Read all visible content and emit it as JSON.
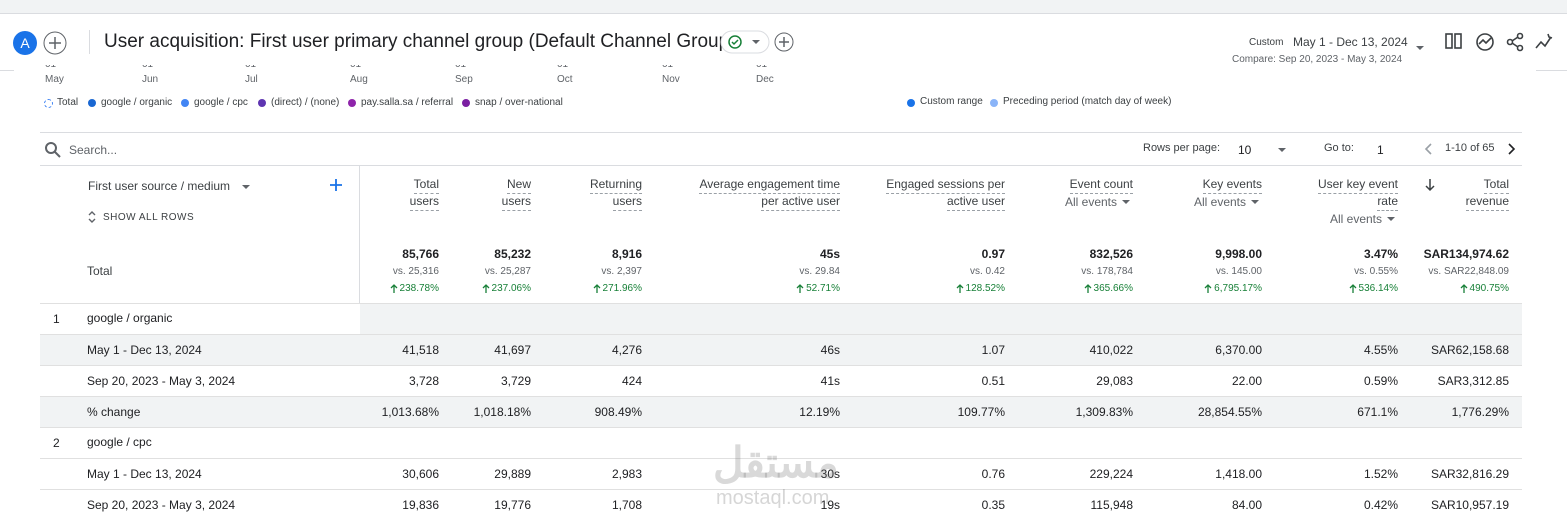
{
  "header": {
    "avatar": "A",
    "title": "User acquisition: First user primary channel group (Default Channel Group)",
    "date_label": "Custom",
    "date_range": "May 1 - Dec 13, 2024",
    "compare": "Compare: Sep 20, 2023 - May 3, 2024"
  },
  "chart_axis": {
    "day": "01",
    "months": [
      "May",
      "Jun",
      "Jul",
      "Aug",
      "Sep",
      "Oct",
      "Nov",
      "Dec"
    ]
  },
  "legend": {
    "series": [
      "Total",
      "google / organic",
      "google / cpc",
      "(direct) / (none)",
      "pay.salla.sa / referral",
      "snap / over-national"
    ],
    "periods": [
      "Custom range",
      "Preceding period (match day of week)"
    ]
  },
  "toolbar": {
    "search": "Search...",
    "rows_per_page_label": "Rows per page:",
    "rows_per_page": "10",
    "go_to_label": "Go to:",
    "go_to": "1",
    "pagination": "1-10 of 65"
  },
  "table": {
    "dimension": "First user source / medium",
    "show_all": "SHOW ALL ROWS",
    "columns": [
      {
        "lines": [
          "Total",
          "users"
        ]
      },
      {
        "lines": [
          "New",
          "users"
        ]
      },
      {
        "lines": [
          "Returning",
          "users"
        ]
      },
      {
        "lines": [
          "Average engagement time",
          "per active user"
        ]
      },
      {
        "lines": [
          "Engaged sessions per",
          "active user"
        ]
      },
      {
        "lines": [
          "Event count"
        ],
        "sub": "All events"
      },
      {
        "lines": [
          "Key events"
        ],
        "sub": "All events"
      },
      {
        "lines": [
          "User key event",
          "rate"
        ],
        "sub": "All events"
      },
      {
        "lines": [
          "Total",
          "revenue"
        ]
      }
    ],
    "total": {
      "label": "Total",
      "values": [
        "85,766",
        "85,232",
        "8,916",
        "45s",
        "0.97",
        "832,526",
        "9,998.00",
        "3.47%",
        "SAR134,974.62"
      ],
      "vs": [
        "vs. 25,316",
        "vs. 25,287",
        "vs. 2,397",
        "vs. 29.84",
        "vs. 0.42",
        "vs. 178,784",
        "vs. 145.00",
        "vs. 0.55%",
        "vs. SAR22,848.09"
      ],
      "change": [
        "238.78%",
        "237.06%",
        "271.96%",
        "52.71%",
        "128.52%",
        "365.66%",
        "6,795.17%",
        "536.14%",
        "490.75%"
      ]
    },
    "groups": [
      {
        "index": "1",
        "name": "google / organic",
        "rows": [
          {
            "label": "May 1 - Dec 13, 2024",
            "values": [
              "41,518",
              "41,697",
              "4,276",
              "46s",
              "1.07",
              "410,022",
              "6,370.00",
              "4.55%",
              "SAR62,158.68"
            ]
          },
          {
            "label": "Sep 20, 2023 - May 3, 2024",
            "values": [
              "3,728",
              "3,729",
              "424",
              "41s",
              "0.51",
              "29,083",
              "22.00",
              "0.59%",
              "SAR3,312.85"
            ]
          },
          {
            "label": "% change",
            "values": [
              "1,013.68%",
              "1,018.18%",
              "908.49%",
              "12.19%",
              "109.77%",
              "1,309.83%",
              "28,854.55%",
              "671.1%",
              "1,776.29%"
            ]
          }
        ]
      },
      {
        "index": "2",
        "name": "google / cpc",
        "rows": [
          {
            "label": "May 1 - Dec 13, 2024",
            "values": [
              "30,606",
              "29,889",
              "2,983",
              "30s",
              "0.76",
              "229,224",
              "1,418.00",
              "1.52%",
              "SAR32,816.29"
            ]
          },
          {
            "label": "Sep 20, 2023 - May 3, 2024",
            "values": [
              "19,836",
              "19,776",
              "1,708",
              "19s",
              "0.35",
              "115,948",
              "84.00",
              "0.42%",
              "SAR10,957.19"
            ]
          }
        ]
      }
    ]
  },
  "watermark": {
    "arabic": "مستقل",
    "latin": "mostaql.com"
  }
}
